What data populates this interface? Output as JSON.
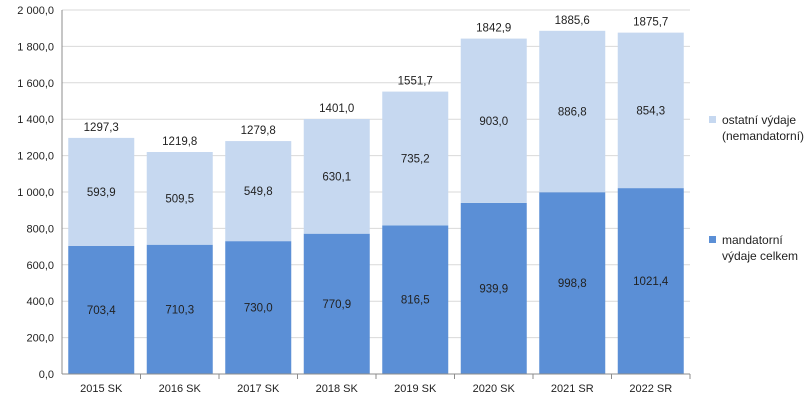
{
  "chart_data": {
    "type": "bar",
    "stacked": true,
    "categories": [
      "2015 SK",
      "2016 SK",
      "2017 SK",
      "2018 SK",
      "2019 SK",
      "2020 SK",
      "2021 SR",
      "2022 SR"
    ],
    "series": [
      {
        "name": "mandatorní výdaje celkem",
        "legend_lines": [
          "mandatorní",
          "výdaje celkem"
        ],
        "color": "#5b8fd6",
        "values": [
          703.4,
          710.3,
          730.0,
          770.9,
          816.5,
          939.9,
          998.8,
          1021.4
        ],
        "labels": [
          "703,4",
          "710,3",
          "730,0",
          "770,9",
          "816,5",
          "939,9",
          "998,8",
          "1021,4"
        ]
      },
      {
        "name": "ostatní výdaje (nemandatorní)",
        "legend_lines": [
          "ostatní výdaje",
          "(nemandatorní)"
        ],
        "color": "#c6d8f0",
        "values": [
          593.9,
          509.5,
          549.8,
          630.1,
          735.2,
          903.0,
          886.8,
          854.3
        ],
        "labels": [
          "593,9",
          "509,5",
          "549,8",
          "630,1",
          "735,2",
          "903,0",
          "886,8",
          "854,3"
        ]
      }
    ],
    "totals": [
      1297.3,
      1219.8,
      1279.8,
      1401.0,
      1551.7,
      1842.9,
      1885.6,
      1875.7
    ],
    "total_labels": [
      "1297,3",
      "1219,8",
      "1279,8",
      "1401,0",
      "1551,7",
      "1842,9",
      "1885,6",
      "1875,7"
    ],
    "ylim": [
      0,
      2000
    ],
    "yticks": [
      0,
      200,
      400,
      600,
      800,
      1000,
      1200,
      1400,
      1600,
      1800,
      2000
    ],
    "ytick_labels": [
      "0,0",
      "200,0",
      "400,0",
      "600,0",
      "800,0",
      "1 000,0",
      "1 200,0",
      "1 400,0",
      "1 600,0",
      "1 800,0",
      "2 000,0"
    ],
    "grid": true,
    "legend_position": "right",
    "title": "",
    "xlabel": "",
    "ylabel": ""
  }
}
